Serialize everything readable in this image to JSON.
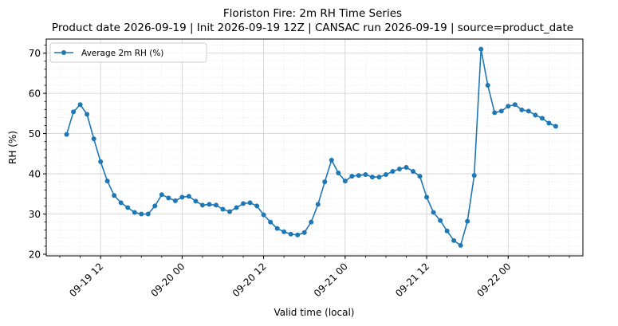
{
  "chart_data": {
    "type": "line",
    "title": "Floriston Fire: 2m RH Time Series",
    "subtitle": "Product date 2026-09-19 | Init 2026-09-19 12Z | CANSAC run 2026-09-19 | source=product_date",
    "xlabel": "Valid time (local)",
    "ylabel": "RH (%)",
    "x_start": "2026-09-19 07:00",
    "x_step_hours": 1,
    "xlim": [
      "2026-09-19 04:00",
      "2026-09-22 11:00"
    ],
    "ylim": [
      19.6,
      73.5
    ],
    "x_ticks": [
      "09-19 12",
      "09-20 00",
      "09-20 12",
      "09-21 00",
      "09-21 12",
      "09-22 00"
    ],
    "y_ticks": [
      20,
      30,
      40,
      50,
      60,
      70
    ],
    "grid": true,
    "legend_position": "top-left",
    "series": [
      {
        "name": "Average 2m RH (%)",
        "color": "#1f77b4",
        "values": [
          49.8,
          55.4,
          57.2,
          54.8,
          48.7,
          43.0,
          38.2,
          34.6,
          32.8,
          31.6,
          30.4,
          30.0,
          30.0,
          32.0,
          34.8,
          34.0,
          33.3,
          34.2,
          34.4,
          33.2,
          32.2,
          32.4,
          32.2,
          31.2,
          30.6,
          31.6,
          32.6,
          32.8,
          32.0,
          29.8,
          28.0,
          26.4,
          25.6,
          25.0,
          24.8,
          25.4,
          28.0,
          32.4,
          38.0,
          43.4,
          40.2,
          38.2,
          39.4,
          39.6,
          39.8,
          39.2,
          39.2,
          39.8,
          40.6,
          41.2,
          41.6,
          40.6,
          39.4,
          34.2,
          30.4,
          28.4,
          25.8,
          23.4,
          22.2,
          28.2,
          39.6,
          71.0,
          62.0,
          55.2,
          55.6,
          56.8,
          57.2,
          55.9,
          55.6,
          54.6,
          53.8,
          52.6,
          51.8
        ]
      }
    ]
  }
}
